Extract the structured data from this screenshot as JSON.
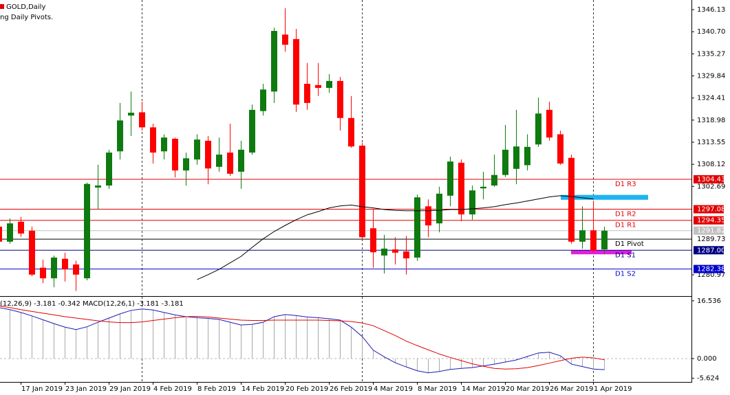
{
  "header": {
    "title": "GOLD,Daily",
    "indicator": "ng Daily Pivots."
  },
  "chart_data": [
    {
      "type": "candlestick",
      "categories": [
        null,
        null,
        "17 Jan 2019",
        null,
        null,
        null,
        "23 Jan 2019",
        null,
        null,
        null,
        "29 Jan 2019",
        null,
        null,
        null,
        "4 Feb 2019",
        null,
        null,
        null,
        "8 Feb 2019",
        null,
        null,
        null,
        "14 Feb 2019",
        null,
        null,
        null,
        "20 Feb 2019",
        null,
        null,
        null,
        "26 Feb 2019",
        null,
        null,
        null,
        "4 Mar 2019",
        null,
        null,
        null,
        "8 Mar 2019",
        null,
        null,
        null,
        "14 Mar 2019",
        null,
        null,
        null,
        "20 Mar 2019",
        null,
        null,
        null,
        "26 Mar 2019",
        null,
        null,
        null,
        "1 Apr 2019",
        null
      ],
      "open": [
        1292.8,
        1289.1,
        1294.0,
        1291.8,
        1282.7,
        1280.1,
        1284.9,
        1283.5,
        1280.1,
        1302.4,
        1302.9,
        1311.3,
        1320.1,
        1320.9,
        1317.2,
        1311.3,
        1314.4,
        1306.6,
        1309.3,
        1313.9,
        1307.5,
        1311.0,
        1306.3,
        1311.0,
        1321.2,
        1326.0,
        1340.0,
        1338.9,
        1327.9,
        1327.6,
        1326.9,
        1328.6,
        1319.5,
        1312.7,
        1292.4,
        1285.7,
        1287.2,
        1286.7,
        1285.2,
        1297.8,
        1293.6,
        1300.4,
        1308.5,
        1295.8,
        1302.2,
        1302.9,
        1305.5,
        1307.0,
        1307.9,
        1313.0,
        1321.5,
        1315.5,
        1309.7,
        1289.1,
        1291.9,
        1287.2
      ],
      "high": [
        1294.1,
        1294.8,
        1295.2,
        1292.8,
        1284.7,
        1285.7,
        1286.4,
        1284.4,
        1303.6,
        1308.0,
        1311.7,
        1323.2,
        1326.0,
        1323.5,
        1318.1,
        1315.5,
        1314.7,
        1311.0,
        1315.5,
        1315.1,
        1314.7,
        1318.1,
        1313.9,
        1322.8,
        1327.9,
        1341.7,
        1346.5,
        1341.4,
        1333.0,
        1333.0,
        1330.3,
        1329.6,
        1324.9,
        1313.4,
        1297.0,
        1290.8,
        1290.2,
        1290.5,
        1300.7,
        1299.5,
        1302.6,
        1310.0,
        1309.3,
        1302.9,
        1306.3,
        1310.5,
        1317.8,
        1321.5,
        1315.5,
        1324.5,
        1323.5,
        1316.4,
        1310.5,
        1297.8,
        1299.2,
        1292.8
      ],
      "low": [
        1288.6,
        1288.6,
        1290.3,
        1280.6,
        1278.9,
        1277.9,
        1279.3,
        1277.0,
        1279.6,
        1297.0,
        1302.1,
        1309.3,
        1315.1,
        1316.4,
        1308.3,
        1309.3,
        1304.9,
        1302.9,
        1308.0,
        1303.2,
        1306.3,
        1305.3,
        1302.1,
        1310.5,
        1320.1,
        1323.2,
        1335.8,
        1321.0,
        1321.5,
        1324.9,
        1325.7,
        1316.4,
        1312.2,
        1289.4,
        1282.7,
        1281.3,
        1283.5,
        1281.0,
        1284.4,
        1290.2,
        1291.4,
        1297.8,
        1294.1,
        1294.5,
        1299.5,
        1302.6,
        1305.0,
        1303.2,
        1306.6,
        1312.4,
        1313.9,
        1308.0,
        1288.6,
        1287.4,
        1286.4,
        1286.0
      ],
      "close": [
        1289.1,
        1293.6,
        1291.1,
        1281.0,
        1280.1,
        1285.2,
        1282.3,
        1281.0,
        1303.3,
        1302.9,
        1311.0,
        1318.9,
        1320.8,
        1317.2,
        1311.0,
        1314.7,
        1306.6,
        1309.6,
        1314.2,
        1307.1,
        1310.5,
        1305.8,
        1311.7,
        1321.5,
        1326.5,
        1340.9,
        1337.5,
        1322.8,
        1323.2,
        1326.9,
        1328.6,
        1319.5,
        1312.5,
        1290.2,
        1286.5,
        1287.4,
        1286.4,
        1285.0,
        1300.0,
        1293.1,
        1300.9,
        1308.8,
        1295.8,
        1301.7,
        1302.6,
        1305.5,
        1311.7,
        1312.5,
        1312.4,
        1320.6,
        1314.7,
        1308.3,
        1289.1,
        1291.9,
        1286.9,
        1291.8
      ],
      "bull_color": "#0f7a0f",
      "bear_color": "#ff0000",
      "ma": {
        "color": "#000000",
        "values": [
          null,
          null,
          null,
          null,
          null,
          null,
          null,
          null,
          null,
          null,
          null,
          null,
          null,
          null,
          null,
          null,
          null,
          null,
          1279.8,
          1281.0,
          1282.3,
          1283.9,
          1285.5,
          1287.7,
          1289.8,
          1291.6,
          1293.1,
          1294.5,
          1295.7,
          1296.5,
          1297.4,
          1297.9,
          1298.1,
          1297.7,
          1297.4,
          1297.0,
          1296.8,
          1296.7,
          1296.7,
          1296.7,
          1296.8,
          1297.0,
          1297.0,
          1297.2,
          1297.4,
          1297.7,
          1298.2,
          1298.6,
          1299.1,
          1299.6,
          1300.1,
          1300.4,
          1300.2,
          1299.9,
          1299.6,
          null
        ]
      },
      "ylim": [
        1275.9,
        1348.5
      ],
      "yticks": [
        1346.13,
        {
          "value": 1340.7,
          "label": "1340.70"
        },
        1335.27,
        1329.84,
        1324.41,
        1318.98,
        1313.55,
        1308.12,
        1302.69,
        1280.97
      ],
      "levels": [
        {
          "label": "D1 R3",
          "value": 1304.43,
          "color": "#e00000"
        },
        {
          "label": "D1 R2",
          "value": 1297.08,
          "color": "#e00000"
        },
        {
          "label": "D1 R1",
          "value": 1294.35,
          "color": "#e00000"
        },
        {
          "label": "D1 Pivot",
          "value": 1289.73,
          "color": "#000000",
          "boxed": false
        },
        {
          "label": "D1 S1",
          "value": 1287,
          "value_label": "1287.00",
          "color": "#000080"
        },
        {
          "label": "D1 S2",
          "value": 1282.38,
          "color": "#0000cd"
        }
      ],
      "last_price": 1291.82,
      "last_price_color": "#c0c0c0",
      "zones": [
        {
          "from": 1299.4,
          "to": 1300.6,
          "color": "#1eb4f0"
        },
        {
          "from": 1286.0,
          "to": 1287.0,
          "color": "#e020e0"
        }
      ]
    },
    {
      "type": "macd",
      "text": "(12,26,9) -3.181 -0.342 MACD(12,26,1) -3.181 -3.181",
      "values": [
        14.6,
        14.0,
        13.2,
        12.2,
        11.1,
        10.0,
        9.0,
        8.3,
        9.1,
        10.4,
        11.6,
        12.8,
        13.8,
        14.2,
        13.9,
        13.2,
        12.5,
        12.0,
        11.7,
        11.5,
        11.2,
        10.4,
        9.6,
        9.8,
        10.4,
        12.0,
        12.6,
        12.3,
        11.9,
        11.7,
        11.4,
        11.0,
        9.0,
        6.3,
        2.4,
        0.5,
        -1.2,
        -2.4,
        -3.5,
        -4.1,
        -3.7,
        -3.1,
        -2.8,
        -2.6,
        -2.1,
        -1.6,
        -1.0,
        -0.4,
        0.6,
        1.6,
        1.8,
        0.8,
        -1.6,
        -2.3,
        -3.0,
        -3.181
      ],
      "bar_color": "#a8a8a8",
      "line_color": "#1a1ab4",
      "signal": {
        "color": "#e00000",
        "values": [
          15.1,
          14.6,
          14.0,
          13.5,
          13.0,
          12.5,
          12.0,
          11.6,
          11.2,
          10.8,
          10.5,
          10.3,
          10.3,
          10.5,
          10.9,
          11.3,
          11.7,
          12.0,
          12.1,
          11.9,
          11.6,
          11.3,
          11.0,
          10.9,
          10.9,
          11.0,
          11.0,
          11.0,
          11.0,
          11.0,
          10.9,
          10.8,
          10.6,
          10.2,
          9.4,
          8.0,
          6.6,
          5.0,
          3.7,
          2.5,
          1.3,
          0.3,
          -0.6,
          -1.5,
          -2.2,
          -2.8,
          -3.0,
          -2.9,
          -2.6,
          -2.0,
          -1.3,
          -0.6,
          0.1,
          0.4,
          0.2,
          -0.342
        ]
      },
      "ylim": [
        -6.5,
        17.5
      ],
      "yticks": [
        16.536,
        {
          "value": 0,
          "label": "0.000"
        },
        -5.624
      ]
    }
  ]
}
